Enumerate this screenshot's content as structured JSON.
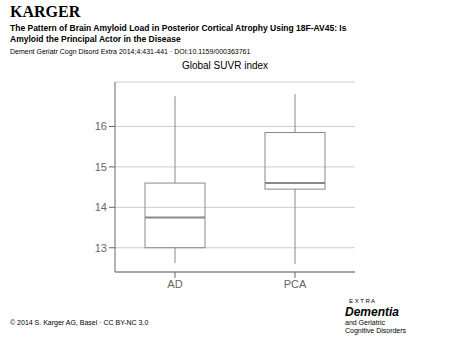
{
  "chart_data": {
    "type": "box",
    "title": "Global SUVR index",
    "subtitle": "Dement Geriatr Cogn Disord Extra 2014;4:431-441  ·  DOI:10.1159/000363761",
    "annotations": [
      "KARGER",
      "The Pattern of Brain Amyloid Load in Posterior Cortical Atrophy Using 18F-AV45: Is",
      "Amyloid the Principal Actor in the Disease",
      "© 2014 S. Karger AG, Basel · CC BY-NC 3.0",
      "E X T R A",
      "Dementia",
      "and Geriatric",
      "Cognitive Disorders"
    ],
    "categories": [
      "AD",
      "PCA"
    ],
    "whisker_low": [
      12.62,
      12.6
    ],
    "q1": [
      13.0,
      14.45
    ],
    "median": [
      13.75,
      14.6
    ],
    "q3": [
      14.6,
      15.85
    ],
    "whisker_high": [
      16.75,
      16.8
    ],
    "color": "#888888",
    "ylim": [
      12.4,
      17.1
    ],
    "yticks": [
      13,
      14,
      15,
      16
    ],
    "grid": true
  }
}
